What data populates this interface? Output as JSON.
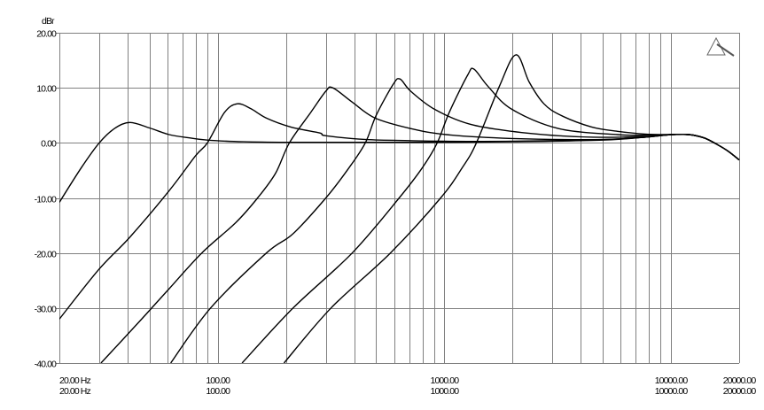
{
  "chart_data": {
    "type": "line",
    "title": "",
    "ylabel": "dBr",
    "xlabel": "",
    "x_scale": "log",
    "xlim": [
      20,
      20000
    ],
    "ylim": [
      -40,
      20
    ],
    "grid": true,
    "legend": "none",
    "line_color": "#000000",
    "grid_color": "#808080",
    "y_ticks": [
      20,
      10,
      0,
      -10,
      -20,
      -30,
      -40
    ],
    "y_tick_labels": [
      "20.00",
      "10.00",
      "0.00",
      "-10.00",
      "-20.00",
      "-30.00",
      "-40.00"
    ],
    "x_ticks": [
      20,
      100,
      1000,
      10000,
      20000
    ],
    "x_tick_labels_row1": [
      "20.00 Hz",
      "100.00",
      "1000.00",
      "10000.00",
      "20000.00"
    ],
    "x_tick_labels_row2": [
      "20.00 Hz",
      "100.00",
      "1000.00",
      "10000.00",
      "20000.00"
    ],
    "series": [
      {
        "x": [
          20,
          25,
          30,
          35,
          41,
          50,
          61,
          75,
          90,
          130,
          200,
          500,
          1000,
          2000,
          5000,
          8000,
          10000,
          12000,
          14000,
          16000,
          18000,
          20000
        ],
        "y": [
          -10.8,
          -4.5,
          0,
          2.6,
          3.7,
          2.7,
          1.5,
          0.9,
          0.5,
          0.2,
          0.1,
          0.1,
          0.1,
          0.2,
          0.5,
          1.1,
          1.5,
          1.5,
          0.9,
          -0.3,
          -1.6,
          -3.1
        ]
      },
      {
        "x": [
          20,
          30,
          41,
          61,
          80,
          90,
          107,
          122,
          140,
          164,
          209,
          281,
          300,
          453,
          700,
          1000,
          2000,
          5000,
          8000,
          10000,
          12000,
          14000,
          16000,
          18000,
          20000
        ],
        "y": [
          -32,
          -22.9,
          -17.1,
          -8.7,
          -2.3,
          0,
          5.5,
          7.1,
          6.2,
          4.5,
          2.9,
          1.8,
          1.3,
          0.6,
          0.4,
          0.3,
          0.3,
          0.6,
          1.1,
          1.5,
          1.5,
          0.9,
          -0.3,
          -1.6,
          -3.1
        ]
      },
      {
        "x": [
          30.5,
          45,
          61,
          85,
          120,
          150,
          180,
          207,
          257,
          300,
          322,
          392,
          495,
          710,
          1018,
          1985,
          5000,
          8000,
          10000,
          12000,
          14000,
          16000,
          18000,
          20000
        ],
        "y": [
          -40,
          -32.5,
          -26.5,
          -20,
          -14.5,
          -10,
          -5.5,
          0,
          5.5,
          9.4,
          10.0,
          7.4,
          4.5,
          2.6,
          1.5,
          0.8,
          0.6,
          1.1,
          1.5,
          1.5,
          0.9,
          -0.3,
          -1.6,
          -3.1
        ]
      },
      {
        "x": [
          62,
          93,
          164,
          215,
          300,
          380,
          448,
          500,
          594,
          637,
          710,
          905,
          1295,
          1985,
          3190,
          5000,
          8000,
          10000,
          12000,
          14000,
          16000,
          18000,
          20000
        ],
        "y": [
          -40,
          -30,
          -20,
          -16.5,
          -10,
          -4.5,
          0,
          5,
          10.6,
          11.6,
          9.4,
          6.1,
          3.4,
          2.1,
          1.3,
          1.0,
          1.2,
          1.5,
          1.5,
          0.9,
          -0.3,
          -1.6,
          -3.1
        ]
      },
      {
        "x": [
          128,
          215,
          392,
          632,
          800,
          930,
          1050,
          1266,
          1350,
          1555,
          1985,
          3190,
          5800,
          8000,
          10000,
          12000,
          14000,
          16000,
          18000,
          20000
        ],
        "y": [
          -40,
          -30,
          -20,
          -10,
          -4.5,
          0,
          5.5,
          12.3,
          13.4,
          10.3,
          6.1,
          2.6,
          1.5,
          1.4,
          1.5,
          1.5,
          0.9,
          -0.3,
          -1.6,
          -3.1
        ]
      },
      {
        "x": [
          196,
          316,
          578,
          963,
          1200,
          1385,
          1750,
          2070,
          2370,
          2750,
          3270,
          4450,
          5800,
          7700,
          10000,
          12000,
          14000,
          16000,
          18000,
          20000
        ],
        "y": [
          -40,
          -30,
          -20,
          -10,
          -4.5,
          0,
          10.3,
          16.0,
          11.0,
          7.1,
          5.0,
          2.9,
          2.1,
          1.6,
          1.5,
          1.5,
          0.9,
          -0.3,
          -1.6,
          -3.1
        ]
      }
    ]
  },
  "logo": {
    "icon": "audio-precision-triangle-icon"
  }
}
